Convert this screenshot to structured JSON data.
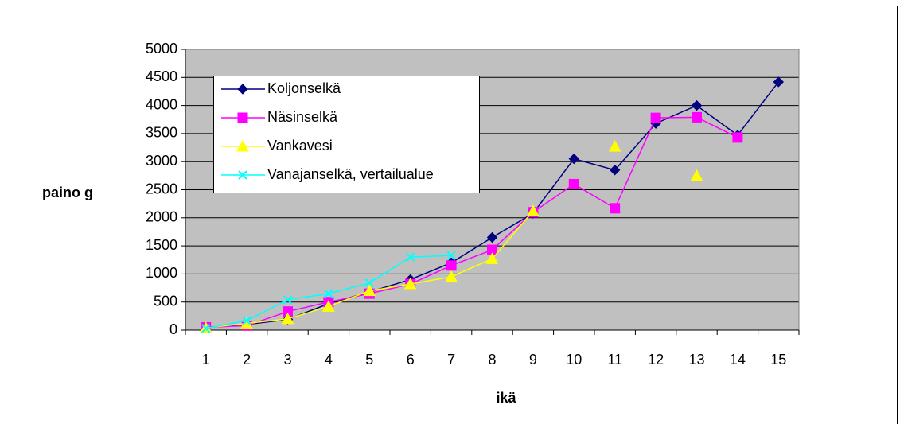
{
  "chart_data": {
    "type": "line",
    "x_label": "ikä",
    "y_label": "paino g",
    "categories": [
      1,
      2,
      3,
      4,
      5,
      6,
      7,
      8,
      9,
      10,
      11,
      12,
      13,
      14,
      15
    ],
    "series": [
      {
        "name": "Koljonselkä",
        "color": "#000080",
        "marker": "diamond",
        "values": [
          50,
          100,
          190,
          470,
          680,
          900,
          1200,
          1650,
          2080,
          3050,
          2850,
          3680,
          4000,
          3470,
          4420
        ]
      },
      {
        "name": "Näsinselkä",
        "color": "#ff00ff",
        "marker": "square",
        "values": [
          50,
          80,
          330,
          500,
          650,
          820,
          1150,
          1430,
          2100,
          2600,
          2170,
          3780,
          3790,
          3430,
          null
        ]
      },
      {
        "name": "Vankavesi",
        "color": "#ffff00",
        "marker": "triangle",
        "values": [
          40,
          120,
          200,
          420,
          700,
          820,
          950,
          1270,
          2120,
          null,
          3270,
          null,
          2750,
          null,
          null
        ]
      },
      {
        "name": "Vanajanselkä, vertailualue",
        "color": "#00ffff",
        "marker": "x",
        "values": [
          30,
          170,
          540,
          650,
          840,
          1300,
          1330,
          null,
          null,
          null,
          null,
          null,
          null,
          null,
          null
        ]
      }
    ],
    "ylim": [
      0,
      5000
    ],
    "yticks": [
      0,
      500,
      1000,
      1500,
      2000,
      2500,
      3000,
      3500,
      4000,
      4500,
      5000
    ],
    "grid": true,
    "legend": "top-left"
  }
}
